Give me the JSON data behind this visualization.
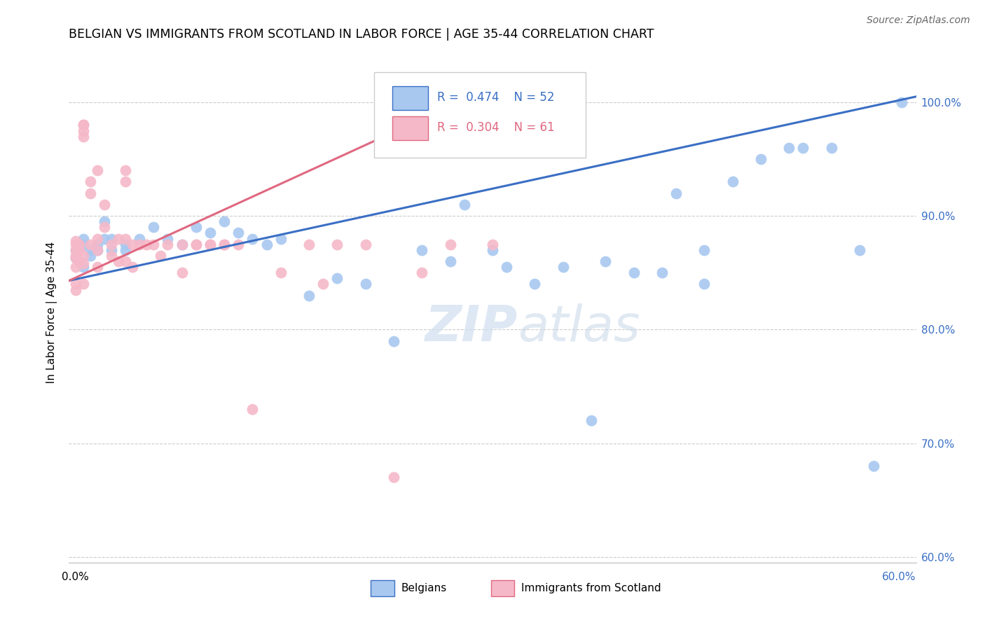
{
  "title": "BELGIAN VS IMMIGRANTS FROM SCOTLAND IN LABOR FORCE | AGE 35-44 CORRELATION CHART",
  "source": "Source: ZipAtlas.com",
  "ylabel": "In Labor Force | Age 35-44",
  "yticks_labels": [
    "100.0%",
    "90.0%",
    "80.0%",
    "70.0%",
    "60.0%"
  ],
  "ytick_values": [
    1.0,
    0.9,
    0.8,
    0.7,
    0.6
  ],
  "xlim": [
    0.0,
    0.6
  ],
  "ylim": [
    0.595,
    1.035
  ],
  "legend_blue_r": "0.474",
  "legend_blue_n": "52",
  "legend_pink_r": "0.304",
  "legend_pink_n": "61",
  "blue_scatter_x": [
    0.005,
    0.005,
    0.01,
    0.01,
    0.01,
    0.015,
    0.015,
    0.02,
    0.02,
    0.025,
    0.025,
    0.03,
    0.03,
    0.04,
    0.04,
    0.05,
    0.06,
    0.07,
    0.08,
    0.09,
    0.1,
    0.11,
    0.12,
    0.13,
    0.14,
    0.15,
    0.17,
    0.19,
    0.21,
    0.23,
    0.25,
    0.27,
    0.28,
    0.3,
    0.31,
    0.33,
    0.35,
    0.37,
    0.38,
    0.4,
    0.42,
    0.45,
    0.47,
    0.49,
    0.51,
    0.52,
    0.54,
    0.56,
    0.57,
    0.59,
    0.43,
    0.45
  ],
  "blue_scatter_y": [
    0.863,
    0.87,
    0.875,
    0.88,
    0.855,
    0.87,
    0.865,
    0.875,
    0.87,
    0.895,
    0.88,
    0.87,
    0.88,
    0.87,
    0.875,
    0.88,
    0.89,
    0.88,
    0.875,
    0.89,
    0.885,
    0.895,
    0.885,
    0.88,
    0.875,
    0.88,
    0.83,
    0.845,
    0.84,
    0.79,
    0.87,
    0.86,
    0.91,
    0.87,
    0.855,
    0.84,
    0.855,
    0.72,
    0.86,
    0.85,
    0.85,
    0.84,
    0.93,
    0.95,
    0.96,
    0.96,
    0.96,
    0.87,
    0.68,
    1.0,
    0.92,
    0.87
  ],
  "pink_scatter_x": [
    0.005,
    0.005,
    0.005,
    0.005,
    0.005,
    0.005,
    0.005,
    0.005,
    0.007,
    0.007,
    0.007,
    0.01,
    0.01,
    0.01,
    0.01,
    0.01,
    0.01,
    0.01,
    0.015,
    0.015,
    0.015,
    0.02,
    0.02,
    0.02,
    0.02,
    0.025,
    0.025,
    0.03,
    0.03,
    0.035,
    0.035,
    0.04,
    0.04,
    0.04,
    0.04,
    0.045,
    0.045,
    0.05,
    0.055,
    0.06,
    0.065,
    0.07,
    0.08,
    0.09,
    0.1,
    0.11,
    0.12,
    0.13,
    0.15,
    0.17,
    0.19,
    0.21,
    0.23,
    0.25,
    0.27,
    0.3,
    0.18,
    0.08,
    0.09,
    0.1,
    0.11
  ],
  "pink_scatter_y": [
    0.863,
    0.87,
    0.878,
    0.855,
    0.84,
    0.835,
    0.875,
    0.865,
    0.875,
    0.87,
    0.86,
    0.98,
    0.98,
    0.975,
    0.97,
    0.865,
    0.858,
    0.84,
    0.93,
    0.92,
    0.875,
    0.94,
    0.88,
    0.87,
    0.855,
    0.91,
    0.89,
    0.875,
    0.865,
    0.88,
    0.86,
    0.94,
    0.93,
    0.88,
    0.86,
    0.875,
    0.855,
    0.875,
    0.875,
    0.875,
    0.865,
    0.875,
    0.875,
    0.875,
    0.875,
    0.875,
    0.875,
    0.73,
    0.85,
    0.875,
    0.875,
    0.875,
    0.67,
    0.85,
    0.875,
    0.875,
    0.84,
    0.85,
    0.875,
    0.875,
    0.875
  ],
  "blue_line_x": [
    0.0,
    0.6
  ],
  "blue_line_y": [
    0.843,
    1.005
  ],
  "pink_line_x": [
    0.0,
    0.285
  ],
  "pink_line_y": [
    0.843,
    1.005
  ],
  "blue_color": "#a8c8f0",
  "pink_color": "#f5b8c8",
  "blue_line_color": "#3a6fc4",
  "pink_line_color": "#e06880",
  "watermark_zip": "ZIP",
  "watermark_atlas": "atlas",
  "grid_color": "#cccccc",
  "background_color": "#ffffff",
  "legend_box_color": "#cccccc"
}
